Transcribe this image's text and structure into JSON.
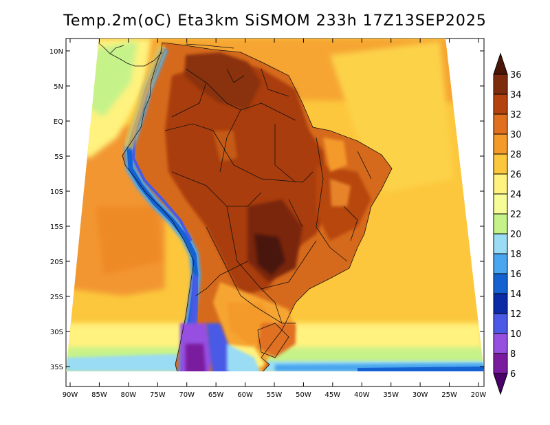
{
  "title": "Temp.2m(oC) Eta3km SiSMOM 233h 17Z13SEP2025",
  "lat_ticks": [
    "10N",
    "5N",
    "EQ",
    "5S",
    "10S",
    "15S",
    "20S",
    "25S",
    "30S",
    "35S"
  ],
  "lon_ticks": [
    "90W",
    "85W",
    "80W",
    "75W",
    "70W",
    "65W",
    "60W",
    "55W",
    "50W",
    "45W",
    "40W",
    "35W",
    "30W",
    "25W",
    "20W"
  ],
  "colorbar": {
    "labels": [
      "36",
      "34",
      "32",
      "30",
      "28",
      "26",
      "24",
      "22",
      "20",
      "18",
      "16",
      "14",
      "12",
      "10",
      "8",
      "6"
    ],
    "colors": [
      "#4a1608",
      "#7e2c0e",
      "#b4420f",
      "#e0701e",
      "#f49a2a",
      "#fcc73c",
      "#fff27e",
      "#f7fb98",
      "#c6f28a",
      "#99dcf4",
      "#4aa6ee",
      "#1462d2",
      "#0a2aa6",
      "#4a5ae6",
      "#9650e0",
      "#7a1a9e",
      "#4a0068"
    ]
  }
}
